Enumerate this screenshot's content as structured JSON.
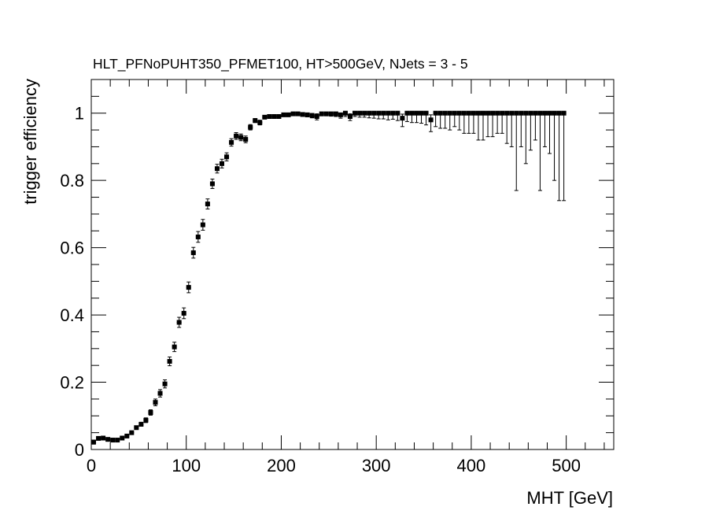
{
  "chart_data": {
    "type": "scatter",
    "title": "HLT_PFNoPUHT350_PFMET100, HT>500GeV, NJets = 3 - 5",
    "xlabel": "MHT [GeV]",
    "ylabel": "trigger efficiency",
    "xlim": [
      0,
      550
    ],
    "ylim": [
      0,
      1.1
    ],
    "x_ticks": [
      0,
      100,
      200,
      300,
      400,
      500
    ],
    "x_tick_labels": [
      "0",
      "100",
      "200",
      "300",
      "400",
      "500"
    ],
    "y_ticks": [
      0,
      0.2,
      0.4,
      0.6,
      0.8,
      1
    ],
    "y_tick_labels": [
      "0",
      "0.2",
      "0.4",
      "0.6",
      "0.8",
      "1"
    ],
    "grid": false,
    "legend": "none",
    "marker_color": "#000000",
    "series": [
      {
        "x": [
          2.5,
          7.5,
          12.5,
          17.5,
          22.5,
          27.5,
          32.5,
          37.5,
          42.5,
          47.5,
          52.5,
          57.5,
          62.5,
          67.5,
          72.5,
          77.5,
          82.5,
          87.5,
          92.5,
          97.5,
          102.5,
          107.5,
          112.5,
          117.5,
          122.5,
          127.5,
          132.5,
          137.5,
          142.5,
          147.5,
          152.5,
          157.5,
          162.5,
          167.5,
          172.5,
          177.5,
          182.5,
          187.5,
          192.5,
          197.5,
          202.5,
          207.5,
          212.5,
          217.5,
          222.5,
          227.5,
          232.5,
          237.5,
          242.5,
          247.5,
          252.5,
          257.5,
          262.5,
          267.5,
          272.5,
          277.5,
          282.5,
          287.5,
          292.5,
          297.5,
          302.5,
          307.5,
          312.5,
          317.5,
          322.5,
          327.5,
          332.5,
          337.5,
          342.5,
          347.5,
          352.5,
          357.5,
          362.5,
          367.5,
          372.5,
          377.5,
          382.5,
          387.5,
          392.5,
          397.5,
          402.5,
          407.5,
          412.5,
          417.5,
          422.5,
          427.5,
          432.5,
          437.5,
          442.5,
          447.5,
          452.5,
          457.5,
          462.5,
          467.5,
          472.5,
          477.5,
          482.5,
          487.5,
          492.5,
          497.5
        ],
        "y": [
          0.022,
          0.033,
          0.034,
          0.03,
          0.028,
          0.028,
          0.034,
          0.04,
          0.05,
          0.065,
          0.075,
          0.087,
          0.11,
          0.14,
          0.167,
          0.195,
          0.262,
          0.305,
          0.378,
          0.405,
          0.482,
          0.585,
          0.632,
          0.668,
          0.73,
          0.79,
          0.835,
          0.85,
          0.87,
          0.913,
          0.932,
          0.928,
          0.922,
          0.958,
          0.978,
          0.972,
          0.988,
          0.99,
          0.99,
          0.99,
          0.995,
          0.995,
          0.998,
          0.998,
          0.996,
          0.995,
          0.993,
          0.99,
          0.998,
          0.998,
          0.998,
          0.998,
          0.995,
          1.0,
          0.99,
          1.0,
          1.0,
          1.0,
          1.0,
          1.0,
          1.0,
          1.0,
          1.0,
          1.0,
          1.0,
          0.985,
          1.0,
          1.0,
          1.0,
          1.0,
          1.0,
          0.98,
          1.0,
          1.0,
          1.0,
          1.0,
          1.0,
          1.0,
          1.0,
          1.0,
          1.0,
          1.0,
          1.0,
          1.0,
          1.0,
          1.0,
          1.0,
          1.0,
          1.0,
          1.0,
          1.0,
          1.0,
          1.0,
          1.0,
          1.0,
          1.0,
          1.0,
          1.0,
          1.0,
          1.0
        ],
        "err_low": [
          0.006,
          0.004,
          0.004,
          0.004,
          0.003,
          0.003,
          0.004,
          0.004,
          0.005,
          0.005,
          0.006,
          0.007,
          0.008,
          0.01,
          0.011,
          0.012,
          0.013,
          0.014,
          0.015,
          0.016,
          0.016,
          0.016,
          0.016,
          0.016,
          0.015,
          0.014,
          0.013,
          0.013,
          0.012,
          0.011,
          0.01,
          0.01,
          0.01,
          0.008,
          0.006,
          0.007,
          0.005,
          0.005,
          0.005,
          0.005,
          0.004,
          0.004,
          0.003,
          0.004,
          0.005,
          0.006,
          0.007,
          0.01,
          0.006,
          0.006,
          0.007,
          0.008,
          0.01,
          0.01,
          0.012,
          0.01,
          0.012,
          0.012,
          0.014,
          0.015,
          0.017,
          0.017,
          0.02,
          0.018,
          0.022,
          0.025,
          0.025,
          0.028,
          0.028,
          0.03,
          0.035,
          0.035,
          0.04,
          0.045,
          0.045,
          0.05,
          0.04,
          0.05,
          0.06,
          0.06,
          0.06,
          0.08,
          0.08,
          0.07,
          0.07,
          0.06,
          0.06,
          0.09,
          0.1,
          0.23,
          0.1,
          0.15,
          0.11,
          0.08,
          0.23,
          0.1,
          0.12,
          0.2,
          0.26,
          0.26
        ],
        "err_high": [
          0.006,
          0.004,
          0.004,
          0.004,
          0.003,
          0.003,
          0.004,
          0.004,
          0.005,
          0.005,
          0.006,
          0.007,
          0.008,
          0.01,
          0.011,
          0.012,
          0.013,
          0.014,
          0.015,
          0.016,
          0.016,
          0.016,
          0.016,
          0.016,
          0.015,
          0.014,
          0.013,
          0.013,
          0.012,
          0.011,
          0.01,
          0.01,
          0.01,
          0.008,
          0.006,
          0.007,
          0.005,
          0.005,
          0.005,
          0.005,
          0.004,
          0.004,
          0.002,
          0.002,
          0.004,
          0.005,
          0.006,
          0.008,
          0.002,
          0.002,
          0.002,
          0.002,
          0.005,
          0.0,
          0.008,
          0.0,
          0.0,
          0.0,
          0.0,
          0.0,
          0.0,
          0.0,
          0.0,
          0.0,
          0.0,
          0.012,
          0.0,
          0.0,
          0.0,
          0.0,
          0.0,
          0.015,
          0.0,
          0.0,
          0.0,
          0.0,
          0.0,
          0.0,
          0.0,
          0.0,
          0.0,
          0.0,
          0.0,
          0.0,
          0.0,
          0.0,
          0.0,
          0.0,
          0.0,
          0.0,
          0.0,
          0.0,
          0.0,
          0.0,
          0.0,
          0.0,
          0.0,
          0.0,
          0.0,
          0.0
        ]
      }
    ]
  }
}
